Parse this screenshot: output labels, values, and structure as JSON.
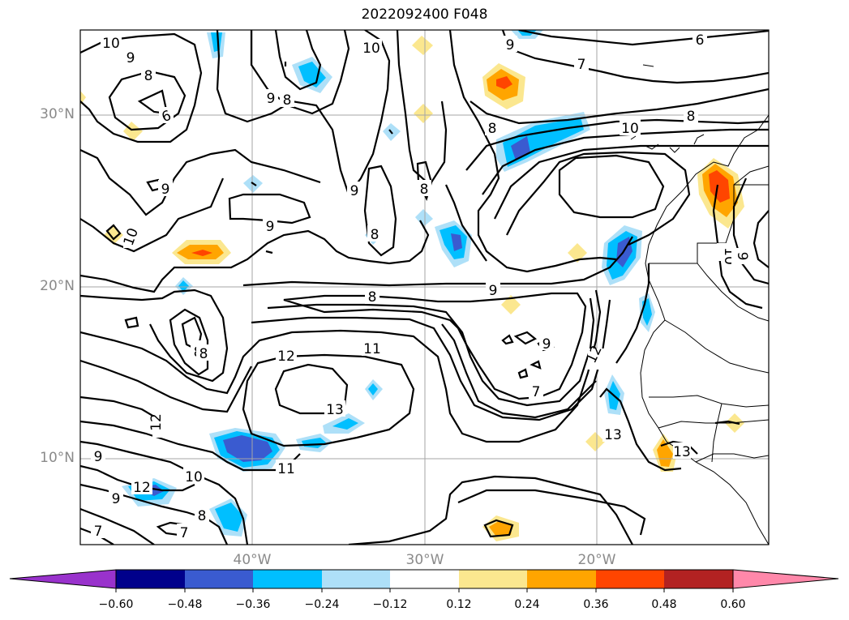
{
  "title": "2022092400 F048",
  "lat_labels": [
    "30°N",
    "20°N",
    "10°N"
  ],
  "lon_labels": [
    "40°W",
    "30°W",
    "20°W"
  ],
  "contour_labels": [
    "10",
    "9",
    "8",
    "10",
    "9",
    "8",
    "9",
    "8",
    "9",
    "10",
    "9",
    "8",
    "8",
    "9",
    "8",
    "7",
    "6",
    "8",
    "10",
    "8",
    "9",
    "9",
    "12",
    "11",
    "8",
    "13",
    "11",
    "12",
    "9",
    "12",
    "10",
    "8",
    "7",
    "7",
    "9",
    "12",
    "13",
    "13",
    "10",
    "9",
    "7",
    "6"
  ],
  "colorbar": {
    "tick_labels": [
      "−0.60",
      "−0.48",
      "−0.36",
      "−0.24",
      "−0.12",
      "0.12",
      "0.24",
      "0.36",
      "0.48",
      "0.60"
    ],
    "colors": [
      "#9932cc",
      "#00008b",
      "#3a5bd0",
      "#00bfff",
      "#aee0f8",
      "#ffffff",
      "#fbe78f",
      "#ffa500",
      "#ff4500",
      "#b22222",
      "#ff88aa"
    ]
  }
}
